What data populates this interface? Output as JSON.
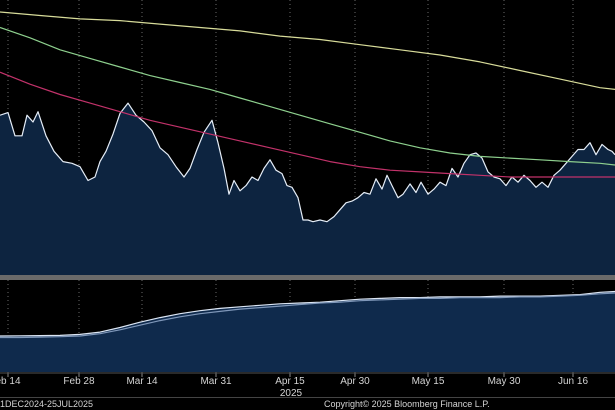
{
  "footer": {
    "range": "1DEC2024-25JUL2025",
    "copyright": "Copyright© 2025 Bloomberg Finance L.P."
  },
  "colors": {
    "background": "#000000",
    "area_fill": "#0d2440",
    "price_line": "#e6eef8",
    "ma_yellow": "#d8dc9a",
    "ma_green": "#8ed08e",
    "ma_magenta": "#c2326a",
    "lower_area_fill": "#0f2a4c",
    "lower_line": "#dce6f4",
    "lower_line2": "#7f97b9",
    "separator": "#6a6a6a",
    "grid": "#6a6a6a"
  },
  "chart_data": {
    "type": "line",
    "x_ticks": [
      "eb 14",
      "Feb 28",
      "Mar 14",
      "Mar 31",
      "Apr 15",
      "Apr 30",
      "May 15",
      "May 30",
      "Jun 16"
    ],
    "year_label": "2025",
    "upper_panel": {
      "series": [
        {
          "style": "area",
          "color": "price_line",
          "x": [
            0,
            8,
            15,
            22,
            27,
            33,
            38,
            46,
            54,
            63,
            72,
            80,
            88,
            95,
            100,
            106,
            113,
            120,
            128,
            136,
            144,
            152,
            160,
            168,
            176,
            184,
            190,
            197,
            204,
            212,
            218,
            224,
            229,
            234,
            240,
            246,
            252,
            258,
            264,
            270,
            276,
            282,
            287,
            292,
            298,
            303,
            308,
            313,
            320,
            327,
            334,
            340,
            346,
            352,
            358,
            364,
            370,
            376,
            382,
            387,
            392,
            398,
            403,
            410,
            416,
            421,
            428,
            434,
            440,
            446,
            452,
            458,
            464,
            470,
            476,
            482,
            488,
            494,
            500,
            506,
            512,
            518,
            524,
            530,
            536,
            542,
            548,
            554,
            560,
            566,
            572,
            578,
            584,
            590,
            596,
            602,
            608,
            612,
            615
          ],
          "y": [
            1.3,
            1.45,
            0.1,
            0.1,
            1.3,
            0.9,
            1.5,
            0.1,
            -0.8,
            -1.4,
            -1.5,
            -1.7,
            -2.5,
            -2.3,
            -1.4,
            -0.8,
            0.2,
            1.4,
            2.0,
            1.3,
            0.9,
            0.4,
            -0.6,
            -1.0,
            -1.7,
            -2.3,
            -1.8,
            -0.7,
            0.3,
            1.0,
            -0.3,
            -1.8,
            -3.3,
            -2.5,
            -3.1,
            -2.8,
            -2.3,
            -2.5,
            -1.8,
            -1.3,
            -1.9,
            -2.1,
            -2.8,
            -2.9,
            -3.5,
            -4.8,
            -4.8,
            -4.9,
            -4.8,
            -4.9,
            -4.6,
            -4.2,
            -3.8,
            -3.7,
            -3.5,
            -3.2,
            -3.3,
            -2.4,
            -3.0,
            -2.2,
            -2.8,
            -3.5,
            -3.3,
            -2.7,
            -3.2,
            -2.6,
            -3.3,
            -3.0,
            -2.6,
            -2.8,
            -1.8,
            -2.3,
            -1.5,
            -1.0,
            -0.9,
            -1.2,
            -2.0,
            -2.3,
            -2.4,
            -2.8,
            -2.3,
            -2.6,
            -2.2,
            -2.5,
            -2.9,
            -2.6,
            -2.9,
            -2.2,
            -1.9,
            -1.5,
            -1.1,
            -0.7,
            -0.7,
            -0.3,
            -1.0,
            -0.4,
            -0.7,
            -0.8,
            -1.0
          ]
        },
        {
          "style": "line",
          "color": "ma_yellow",
          "x": [
            0,
            40,
            80,
            120,
            160,
            200,
            240,
            280,
            320,
            360,
            400,
            440,
            480,
            520,
            560,
            600,
            615
          ],
          "y": [
            7.3,
            7.1,
            6.9,
            6.8,
            6.6,
            6.4,
            6.2,
            5.9,
            5.7,
            5.4,
            5.1,
            4.8,
            4.4,
            3.9,
            3.4,
            2.9,
            2.8
          ]
        },
        {
          "style": "line",
          "color": "ma_green",
          "x": [
            0,
            30,
            60,
            90,
            120,
            150,
            180,
            210,
            240,
            270,
            300,
            330,
            360,
            390,
            420,
            450,
            480,
            510,
            540,
            570,
            600,
            615
          ],
          "y": [
            6.4,
            5.8,
            5.1,
            4.6,
            4.1,
            3.6,
            3.2,
            2.8,
            2.3,
            1.8,
            1.3,
            0.8,
            0.3,
            -0.2,
            -0.6,
            -0.9,
            -1.1,
            -1.2,
            -1.3,
            -1.4,
            -1.5,
            -1.6
          ]
        },
        {
          "style": "line",
          "color": "ma_magenta",
          "x": [
            0,
            30,
            60,
            90,
            120,
            150,
            180,
            210,
            240,
            270,
            300,
            330,
            360,
            390,
            420,
            450,
            480,
            510,
            540,
            570,
            600,
            615
          ],
          "y": [
            3.8,
            3.1,
            2.5,
            2.0,
            1.5,
            1.0,
            0.6,
            0.2,
            -0.2,
            -0.6,
            -1.0,
            -1.4,
            -1.7,
            -1.9,
            -2.0,
            -2.1,
            -2.2,
            -2.3,
            -2.3,
            -2.3,
            -2.3,
            -2.3
          ]
        }
      ]
    },
    "lower_panel": {
      "series": [
        {
          "style": "area",
          "color": "lower_line",
          "x": [
            0,
            20,
            40,
            60,
            80,
            100,
            120,
            140,
            160,
            180,
            200,
            220,
            240,
            260,
            280,
            300,
            320,
            340,
            360,
            380,
            400,
            420,
            440,
            460,
            480,
            500,
            520,
            540,
            560,
            580,
            600,
            615
          ],
          "y": [
            0.7,
            0.72,
            0.75,
            0.78,
            0.9,
            1.2,
            1.8,
            2.5,
            3.1,
            3.6,
            4.0,
            4.3,
            4.5,
            4.7,
            4.9,
            5.0,
            5.1,
            5.3,
            5.5,
            5.6,
            5.7,
            5.7,
            5.8,
            5.8,
            5.8,
            5.9,
            5.9,
            5.9,
            6.0,
            6.1,
            6.4,
            6.5
          ]
        },
        {
          "style": "line",
          "color": "lower_line2",
          "x": [
            0,
            20,
            40,
            60,
            80,
            100,
            120,
            140,
            160,
            180,
            200,
            220,
            240,
            260,
            280,
            300,
            320,
            340,
            360,
            380,
            400,
            420,
            440,
            460,
            480,
            500,
            520,
            540,
            560,
            580,
            600,
            615
          ],
          "y": [
            0.5,
            0.5,
            0.55,
            0.6,
            0.7,
            1.0,
            1.5,
            2.1,
            2.7,
            3.2,
            3.6,
            3.9,
            4.2,
            4.4,
            4.6,
            4.8,
            5.0,
            5.1,
            5.3,
            5.4,
            5.5,
            5.6,
            5.6,
            5.7,
            5.7,
            5.7,
            5.8,
            5.8,
            5.9,
            6.0,
            6.2,
            6.3
          ]
        }
      ]
    }
  }
}
